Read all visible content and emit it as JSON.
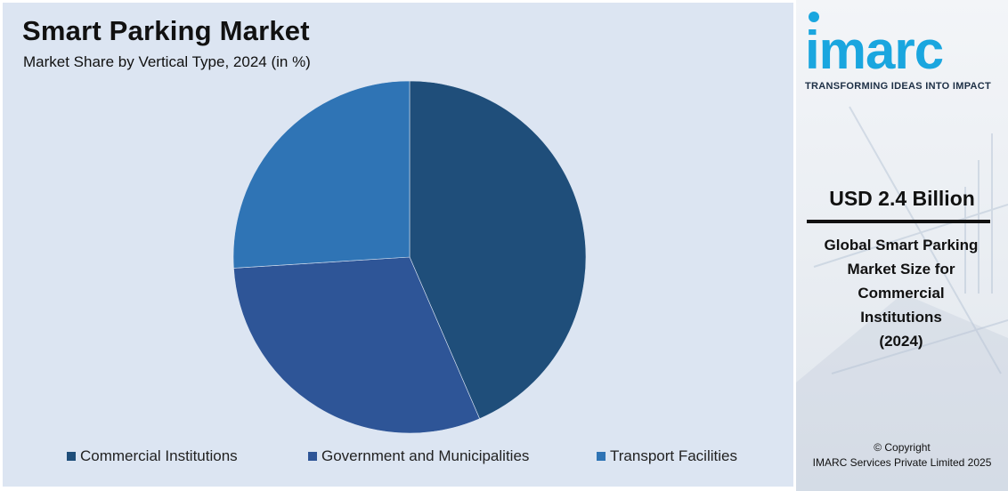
{
  "chart_data": {
    "type": "pie",
    "title": "Smart Parking Market",
    "subtitle": "Market Share by Vertical Type, 2024 (in %)",
    "categories": [
      "Commercial Institutions",
      "Government and Municipalities",
      "Transport Facilities"
    ],
    "values": [
      43.5,
      30.5,
      26.0
    ],
    "colors": [
      "#1f4e7a",
      "#2e5597",
      "#2f74b5"
    ],
    "legend_position": "bottom"
  },
  "sidebar": {
    "logo": "imarc",
    "tagline": "TRANSFORMING IDEAS INTO IMPACT",
    "highlight_value": "USD 2.4 Billion",
    "highlight_desc_lines": [
      "Global Smart Parking",
      "Market Size for",
      "Commercial",
      "Institutions",
      "(2024)"
    ],
    "copyright_line1": "© Copyright",
    "copyright_line2": "IMARC Services Private Limited 2025",
    "logo_color": "#1aa6df"
  }
}
